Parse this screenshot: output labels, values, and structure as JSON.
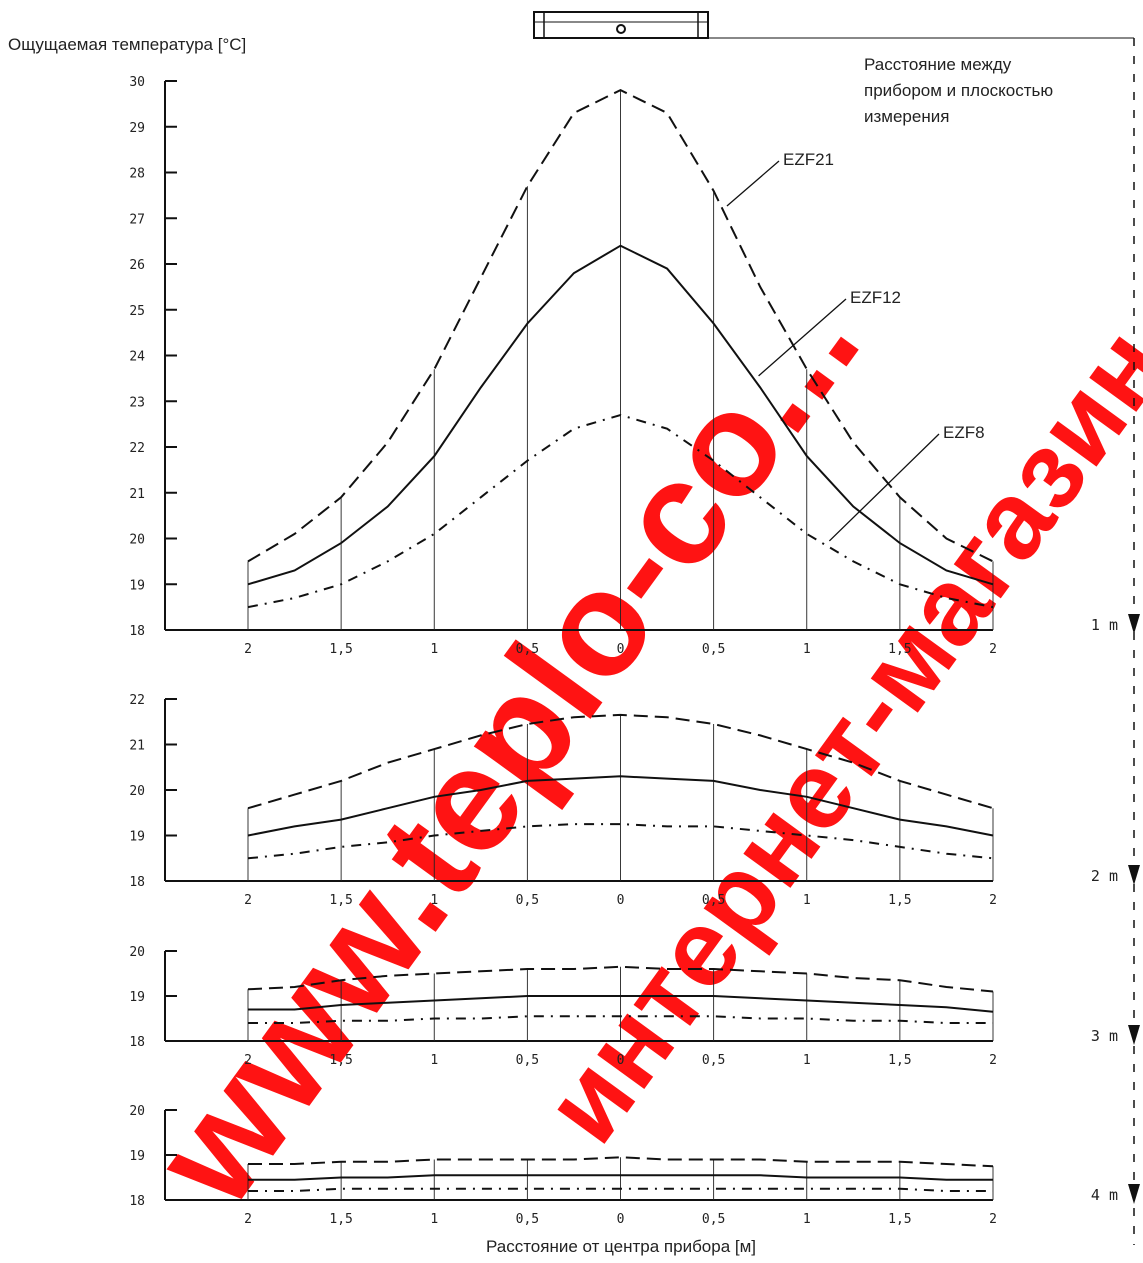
{
  "ylabel": "Ощущаемая температура [°C]",
  "xlabel": "Расстояние от центра прибора [м]",
  "distance_note": [
    "Расстояние между",
    "прибором и плоскостью",
    "измерения"
  ],
  "watermarks": [
    "www.teplo-co...",
    "интернет-магазин"
  ],
  "chart_data": [
    {
      "type": "line",
      "distance_label": "1 m",
      "ylim": [
        18,
        30
      ],
      "yticks": [
        18,
        19,
        20,
        21,
        22,
        23,
        24,
        25,
        26,
        27,
        28,
        29,
        30
      ],
      "x": [
        -2,
        -1.75,
        -1.5,
        -1.25,
        -1,
        -0.75,
        -0.5,
        -0.25,
        0,
        0.25,
        0.5,
        0.75,
        1,
        1.25,
        1.5,
        1.75,
        2
      ],
      "xtick_labels": [
        "2",
        "1,5",
        "1",
        "0,5",
        "0",
        "0,5",
        "1",
        "1,5",
        "2"
      ],
      "series": [
        {
          "name": "EZF21",
          "style": "dashed",
          "values": [
            19.5,
            20.1,
            20.9,
            22.1,
            23.7,
            25.7,
            27.7,
            29.3,
            29.8,
            29.3,
            27.6,
            25.5,
            23.7,
            22.1,
            20.9,
            20.0,
            19.5
          ]
        },
        {
          "name": "EZF12",
          "style": "solid",
          "values": [
            19.0,
            19.3,
            19.9,
            20.7,
            21.8,
            23.3,
            24.7,
            25.8,
            26.4,
            25.9,
            24.7,
            23.3,
            21.8,
            20.7,
            19.9,
            19.3,
            19.0
          ]
        },
        {
          "name": "EZF8",
          "style": "dashdot",
          "values": [
            18.5,
            18.7,
            19.0,
            19.5,
            20.1,
            20.9,
            21.7,
            22.4,
            22.7,
            22.4,
            21.7,
            20.9,
            20.1,
            19.5,
            19.0,
            18.7,
            18.5
          ]
        }
      ]
    },
    {
      "type": "line",
      "distance_label": "2 m",
      "ylim": [
        18,
        22
      ],
      "yticks": [
        18,
        19,
        20,
        21,
        22
      ],
      "x": [
        -2,
        -1.75,
        -1.5,
        -1.25,
        -1,
        -0.75,
        -0.5,
        -0.25,
        0,
        0.25,
        0.5,
        0.75,
        1,
        1.25,
        1.5,
        1.75,
        2
      ],
      "xtick_labels": [
        "2",
        "1,5",
        "1",
        "0,5",
        "0",
        "0,5",
        "1",
        "1,5",
        "2"
      ],
      "series": [
        {
          "name": "EZF21",
          "style": "dashed",
          "values": [
            19.6,
            19.9,
            20.2,
            20.6,
            20.9,
            21.2,
            21.45,
            21.6,
            21.65,
            21.6,
            21.45,
            21.2,
            20.9,
            20.6,
            20.2,
            19.9,
            19.6
          ]
        },
        {
          "name": "EZF12",
          "style": "solid",
          "values": [
            19.0,
            19.2,
            19.35,
            19.6,
            19.85,
            20.0,
            20.2,
            20.25,
            20.3,
            20.25,
            20.2,
            20.0,
            19.85,
            19.6,
            19.35,
            19.2,
            19.0
          ]
        },
        {
          "name": "EZF8",
          "style": "dashdot",
          "values": [
            18.5,
            18.6,
            18.75,
            18.85,
            19.0,
            19.1,
            19.2,
            19.25,
            19.25,
            19.2,
            19.2,
            19.1,
            19.0,
            18.9,
            18.75,
            18.6,
            18.5
          ]
        }
      ]
    },
    {
      "type": "line",
      "distance_label": "3 m",
      "ylim": [
        18,
        20
      ],
      "yticks": [
        18,
        19,
        20
      ],
      "x": [
        -2,
        -1.75,
        -1.5,
        -1.25,
        -1,
        -0.75,
        -0.5,
        -0.25,
        0,
        0.25,
        0.5,
        0.75,
        1,
        1.25,
        1.5,
        1.75,
        2
      ],
      "xtick_labels": [
        "2",
        "1,5",
        "1",
        "0,5",
        "0",
        "0,5",
        "1",
        "1,5",
        "2"
      ],
      "series": [
        {
          "name": "EZF21",
          "style": "dashed",
          "values": [
            19.15,
            19.2,
            19.35,
            19.45,
            19.5,
            19.55,
            19.6,
            19.6,
            19.65,
            19.6,
            19.6,
            19.55,
            19.5,
            19.4,
            19.35,
            19.2,
            19.1
          ]
        },
        {
          "name": "EZF12",
          "style": "solid",
          "values": [
            18.7,
            18.7,
            18.8,
            18.85,
            18.9,
            18.95,
            19.0,
            19.0,
            19.0,
            19.0,
            19.0,
            18.95,
            18.9,
            18.85,
            18.8,
            18.75,
            18.65
          ]
        },
        {
          "name": "EZF8",
          "style": "dashdot",
          "values": [
            18.4,
            18.4,
            18.45,
            18.45,
            18.5,
            18.5,
            18.55,
            18.55,
            18.55,
            18.55,
            18.55,
            18.5,
            18.5,
            18.45,
            18.45,
            18.4,
            18.4
          ]
        }
      ]
    },
    {
      "type": "line",
      "distance_label": "4 m",
      "ylim": [
        18,
        20
      ],
      "yticks": [
        18,
        19,
        20
      ],
      "x": [
        -2,
        -1.75,
        -1.5,
        -1.25,
        -1,
        -0.75,
        -0.5,
        -0.25,
        0,
        0.25,
        0.5,
        0.75,
        1,
        1.25,
        1.5,
        1.75,
        2
      ],
      "xtick_labels": [
        "2",
        "1,5",
        "1",
        "0,5",
        "0",
        "0,5",
        "1",
        "1,5",
        "2"
      ],
      "series": [
        {
          "name": "EZF21",
          "style": "dashed",
          "values": [
            18.8,
            18.8,
            18.85,
            18.85,
            18.9,
            18.9,
            18.9,
            18.9,
            18.95,
            18.9,
            18.9,
            18.9,
            18.85,
            18.85,
            18.85,
            18.8,
            18.75
          ]
        },
        {
          "name": "EZF12",
          "style": "solid",
          "values": [
            18.45,
            18.45,
            18.5,
            18.5,
            18.55,
            18.55,
            18.55,
            18.55,
            18.55,
            18.55,
            18.55,
            18.55,
            18.5,
            18.5,
            18.5,
            18.45,
            18.45
          ]
        },
        {
          "name": "EZF8",
          "style": "dashdot",
          "values": [
            18.2,
            18.2,
            18.25,
            18.25,
            18.25,
            18.25,
            18.25,
            18.25,
            18.25,
            18.25,
            18.25,
            18.25,
            18.25,
            18.25,
            18.25,
            18.2,
            18.2
          ]
        }
      ]
    }
  ]
}
